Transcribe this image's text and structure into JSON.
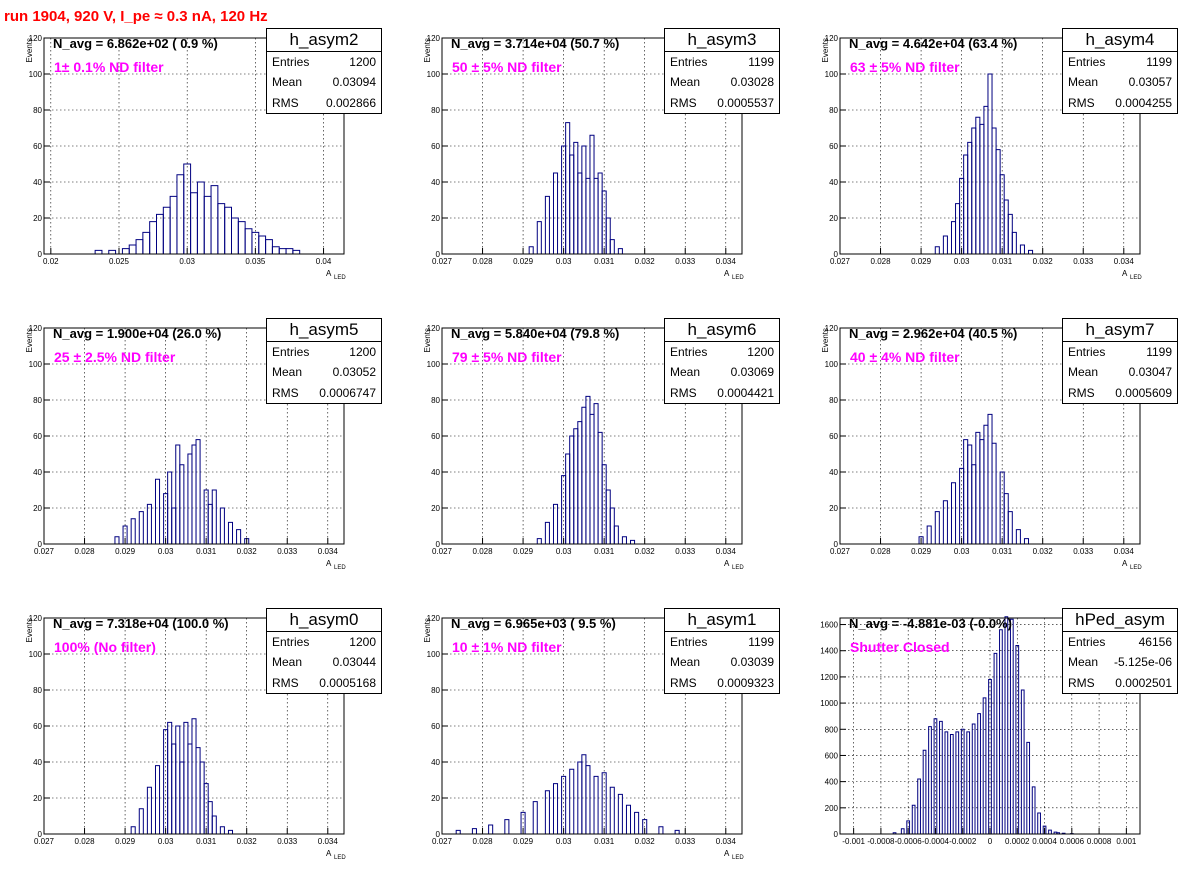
{
  "run_title": "run 1904,   920 V, I_pe ≈ 0.3 nA, 120 Hz",
  "colors": {
    "title": "#ff0000",
    "filter_label": "#ff00ff",
    "histogram": "#000080",
    "grid": "#000000"
  },
  "stats_labels": {
    "entries": "Entries",
    "mean": "Mean",
    "rms": "RMS"
  },
  "ylabel": "Events",
  "xlabel_main": "A",
  "xlabel_sub": "LED",
  "panels": [
    {
      "name": "h_asym2",
      "n_avg": "N_avg = 6.862e+02 ( 0.9 %)",
      "filter": "1± 0.1% ND filter",
      "entries": "1200",
      "mean": "0.03094",
      "rms": "0.002866",
      "xticks": [
        "0.02",
        "0.025",
        "0.03",
        "0.035",
        "0.04"
      ],
      "yticks": [
        "0",
        "20",
        "40",
        "60",
        "80",
        "100",
        "120"
      ]
    },
    {
      "name": "h_asym3",
      "n_avg": "N_avg = 3.714e+04 (50.7 %)",
      "filter": "50 ± 5% ND filter",
      "entries": "1199",
      "mean": "0.03028",
      "rms": "0.0005537",
      "xticks": [
        "0.027",
        "0.028",
        "0.029",
        "0.03",
        "0.031",
        "0.032",
        "0.033",
        "0.034"
      ],
      "yticks": [
        "0",
        "20",
        "40",
        "60",
        "80",
        "100",
        "120"
      ]
    },
    {
      "name": "h_asym4",
      "n_avg": "N_avg = 4.642e+04 (63.4 %)",
      "filter": "63 ± 5% ND filter",
      "entries": "1199",
      "mean": "0.03057",
      "rms": "0.0004255",
      "xticks": [
        "0.027",
        "0.028",
        "0.029",
        "0.03",
        "0.031",
        "0.032",
        "0.033",
        "0.034"
      ],
      "yticks": [
        "0",
        "20",
        "40",
        "60",
        "80",
        "100",
        "120"
      ]
    },
    {
      "name": "h_asym5",
      "n_avg": "N_avg = 1.900e+04 (26.0 %)",
      "filter": "25 ± 2.5% ND filter",
      "entries": "1200",
      "mean": "0.03052",
      "rms": "0.0006747",
      "xticks": [
        "0.027",
        "0.028",
        "0.029",
        "0.03",
        "0.031",
        "0.032",
        "0.033",
        "0.034"
      ],
      "yticks": [
        "0",
        "20",
        "40",
        "60",
        "80",
        "100",
        "120"
      ]
    },
    {
      "name": "h_asym6",
      "n_avg": "N_avg = 5.840e+04 (79.8 %)",
      "filter": "79 ± 5% ND filter",
      "entries": "1200",
      "mean": "0.03069",
      "rms": "0.0004421",
      "xticks": [
        "0.027",
        "0.028",
        "0.029",
        "0.03",
        "0.031",
        "0.032",
        "0.033",
        "0.034"
      ],
      "yticks": [
        "0",
        "20",
        "40",
        "60",
        "80",
        "100",
        "120"
      ]
    },
    {
      "name": "h_asym7",
      "n_avg": "N_avg = 2.962e+04 (40.5 %)",
      "filter": "40 ± 4% ND filter",
      "entries": "1199",
      "mean": "0.03047",
      "rms": "0.0005609",
      "xticks": [
        "0.027",
        "0.028",
        "0.029",
        "0.03",
        "0.031",
        "0.032",
        "0.033",
        "0.034"
      ],
      "yticks": [
        "0",
        "20",
        "40",
        "60",
        "80",
        "100",
        "120"
      ]
    },
    {
      "name": "h_asym0",
      "n_avg": "N_avg = 7.318e+04 (100.0 %)",
      "filter": "100% (No filter)",
      "entries": "1200",
      "mean": "0.03044",
      "rms": "0.0005168",
      "xticks": [
        "0.027",
        "0.028",
        "0.029",
        "0.03",
        "0.031",
        "0.032",
        "0.033",
        "0.034"
      ],
      "yticks": [
        "0",
        "20",
        "40",
        "60",
        "80",
        "100",
        "120"
      ]
    },
    {
      "name": "h_asym1",
      "n_avg": "N_avg = 6.965e+03 ( 9.5 %)",
      "filter": "10 ± 1% ND filter",
      "entries": "1199",
      "mean": "0.03039",
      "rms": "0.0009323",
      "xticks": [
        "0.027",
        "0.028",
        "0.029",
        "0.03",
        "0.031",
        "0.032",
        "0.033",
        "0.034"
      ],
      "yticks": [
        "0",
        "20",
        "40",
        "60",
        "80",
        "100",
        "120"
      ]
    },
    {
      "name": "hPed_asym",
      "n_avg": "N_avg = -4.881e-03 (-0.0%)",
      "filter": "Shutter Closed",
      "entries": "46156",
      "mean": "-5.125e-06",
      "rms": "0.0002501",
      "xticks": [
        "-0.001",
        "-0.0008",
        "-0.0006",
        "-0.0004",
        "-0.0002",
        "0",
        "0.0002",
        "0.0004",
        "0.0006",
        "0.0008",
        "0.001"
      ],
      "yticks": [
        "0",
        "200",
        "400",
        "600",
        "800",
        "1000",
        "1200",
        "1400",
        "1600"
      ]
    }
  ],
  "chart_data": [
    {
      "type": "bar",
      "title": "h_asym2",
      "xlabel": "A LED",
      "ylabel": "Events",
      "xlim": [
        0.0195,
        0.0415
      ],
      "ylim": [
        0,
        120
      ],
      "x": [
        0.0235,
        0.0245,
        0.0255,
        0.026,
        0.0265,
        0.027,
        0.0275,
        0.028,
        0.0285,
        0.029,
        0.0295,
        0.03,
        0.0305,
        0.031,
        0.0315,
        0.032,
        0.0325,
        0.033,
        0.0335,
        0.034,
        0.0345,
        0.035,
        0.0355,
        0.036,
        0.0365,
        0.037,
        0.0375,
        0.038
      ],
      "values": [
        2,
        2,
        3,
        5,
        8,
        12,
        18,
        22,
        26,
        32,
        44,
        50,
        34,
        40,
        32,
        38,
        28,
        26,
        20,
        18,
        14,
        12,
        10,
        8,
        4,
        3,
        3,
        2
      ]
    },
    {
      "type": "bar",
      "title": "h_asym3",
      "xlabel": "A LED",
      "ylabel": "Events",
      "xlim": [
        0.027,
        0.0344
      ],
      "ylim": [
        0,
        120
      ],
      "x": [
        0.0292,
        0.0294,
        0.0296,
        0.0298,
        0.03,
        0.0301,
        0.0302,
        0.0303,
        0.0304,
        0.0305,
        0.0306,
        0.0307,
        0.0308,
        0.0309,
        0.031,
        0.0311,
        0.0312,
        0.0314
      ],
      "values": [
        4,
        18,
        32,
        45,
        60,
        73,
        55,
        62,
        45,
        60,
        42,
        66,
        42,
        45,
        35,
        20,
        8,
        3
      ]
    },
    {
      "type": "bar",
      "title": "h_asym4",
      "xlabel": "A LED",
      "ylabel": "Events",
      "xlim": [
        0.027,
        0.0344
      ],
      "ylim": [
        0,
        120
      ],
      "x": [
        0.0294,
        0.0296,
        0.0298,
        0.0299,
        0.03,
        0.0301,
        0.0302,
        0.0303,
        0.0304,
        0.0305,
        0.0306,
        0.0307,
        0.0308,
        0.0309,
        0.031,
        0.0311,
        0.0312,
        0.0313,
        0.0315,
        0.0317
      ],
      "values": [
        4,
        10,
        18,
        28,
        42,
        55,
        62,
        70,
        76,
        72,
        82,
        100,
        70,
        58,
        44,
        30,
        22,
        12,
        5,
        2
      ]
    },
    {
      "type": "bar",
      "title": "h_asym5",
      "xlabel": "A LED",
      "ylabel": "Events",
      "xlim": [
        0.027,
        0.0344
      ],
      "ylim": [
        0,
        120
      ],
      "x": [
        0.0288,
        0.029,
        0.0292,
        0.0294,
        0.0296,
        0.0298,
        0.03,
        0.0301,
        0.0302,
        0.0303,
        0.0304,
        0.0306,
        0.0307,
        0.0308,
        0.031,
        0.0311,
        0.0312,
        0.0314,
        0.0316,
        0.0318,
        0.032
      ],
      "values": [
        4,
        10,
        14,
        18,
        22,
        36,
        28,
        40,
        20,
        55,
        44,
        50,
        55,
        58,
        30,
        22,
        30,
        20,
        12,
        8,
        3
      ]
    },
    {
      "type": "bar",
      "title": "h_asym6",
      "xlabel": "A LED",
      "ylabel": "Events",
      "xlim": [
        0.027,
        0.0344
      ],
      "ylim": [
        0,
        120
      ],
      "x": [
        0.0294,
        0.0296,
        0.0298,
        0.03,
        0.0301,
        0.0302,
        0.0303,
        0.0304,
        0.0305,
        0.0306,
        0.0307,
        0.0308,
        0.0309,
        0.031,
        0.0311,
        0.0312,
        0.0313,
        0.0315,
        0.0317
      ],
      "values": [
        3,
        12,
        22,
        38,
        50,
        60,
        64,
        68,
        76,
        82,
        72,
        78,
        62,
        44,
        30,
        20,
        10,
        4,
        2
      ]
    },
    {
      "type": "bar",
      "title": "h_asym7",
      "xlabel": "A LED",
      "ylabel": "Events",
      "xlim": [
        0.027,
        0.0344
      ],
      "ylim": [
        0,
        120
      ],
      "x": [
        0.029,
        0.0292,
        0.0294,
        0.0296,
        0.0298,
        0.03,
        0.0301,
        0.0302,
        0.0303,
        0.0304,
        0.0305,
        0.0306,
        0.0307,
        0.0308,
        0.031,
        0.0311,
        0.0312,
        0.0314,
        0.0316
      ],
      "values": [
        4,
        10,
        18,
        24,
        34,
        42,
        58,
        55,
        44,
        62,
        58,
        66,
        72,
        56,
        40,
        28,
        18,
        8,
        3
      ]
    },
    {
      "type": "bar",
      "title": "h_asym0",
      "xlabel": "A LED",
      "ylabel": "Events",
      "xlim": [
        0.027,
        0.0344
      ],
      "ylim": [
        0,
        120
      ],
      "x": [
        0.0292,
        0.0294,
        0.0296,
        0.0298,
        0.03,
        0.0301,
        0.0302,
        0.0303,
        0.0304,
        0.0305,
        0.0306,
        0.0307,
        0.0308,
        0.0309,
        0.031,
        0.0311,
        0.0312,
        0.0314,
        0.0316
      ],
      "values": [
        4,
        14,
        26,
        38,
        58,
        62,
        50,
        60,
        40,
        62,
        50,
        64,
        48,
        40,
        28,
        18,
        10,
        4,
        2
      ]
    },
    {
      "type": "bar",
      "title": "h_asym1",
      "xlabel": "A LED",
      "ylabel": "Events",
      "xlim": [
        0.027,
        0.0344
      ],
      "ylim": [
        0,
        120
      ],
      "x": [
        0.0274,
        0.0278,
        0.0282,
        0.0286,
        0.029,
        0.0293,
        0.0296,
        0.0298,
        0.03,
        0.0302,
        0.0304,
        0.0305,
        0.0306,
        0.0308,
        0.031,
        0.0312,
        0.0314,
        0.0316,
        0.0318,
        0.032,
        0.0324,
        0.0328
      ],
      "values": [
        2,
        3,
        5,
        8,
        12,
        18,
        24,
        28,
        32,
        36,
        40,
        44,
        38,
        32,
        34,
        26,
        22,
        16,
        12,
        8,
        4,
        2
      ]
    },
    {
      "type": "bar",
      "title": "hPed_asym",
      "xlabel": "",
      "ylabel": "",
      "xlim": [
        -0.0011,
        0.0011
      ],
      "ylim": [
        0,
        1650
      ],
      "x": [
        -0.0007,
        -0.00064,
        -0.0006,
        -0.00056,
        -0.00052,
        -0.00048,
        -0.00044,
        -0.0004,
        -0.00036,
        -0.00032,
        -0.00028,
        -0.00024,
        -0.0002,
        -0.00016,
        -0.00012,
        -8e-05,
        -4e-05,
        0,
        4e-05,
        8e-05,
        0.00012,
        0.00016,
        0.0002,
        0.00024,
        0.00028,
        0.00032,
        0.00036,
        0.0004,
        0.00044,
        0.00048,
        0.0005,
        0.00054,
        0.0006
      ],
      "values": [
        10,
        40,
        100,
        220,
        420,
        640,
        820,
        880,
        860,
        780,
        760,
        780,
        800,
        780,
        840,
        920,
        1040,
        1180,
        1380,
        1560,
        1660,
        1640,
        1440,
        1100,
        700,
        360,
        160,
        60,
        30,
        14,
        10,
        6,
        3
      ]
    }
  ]
}
